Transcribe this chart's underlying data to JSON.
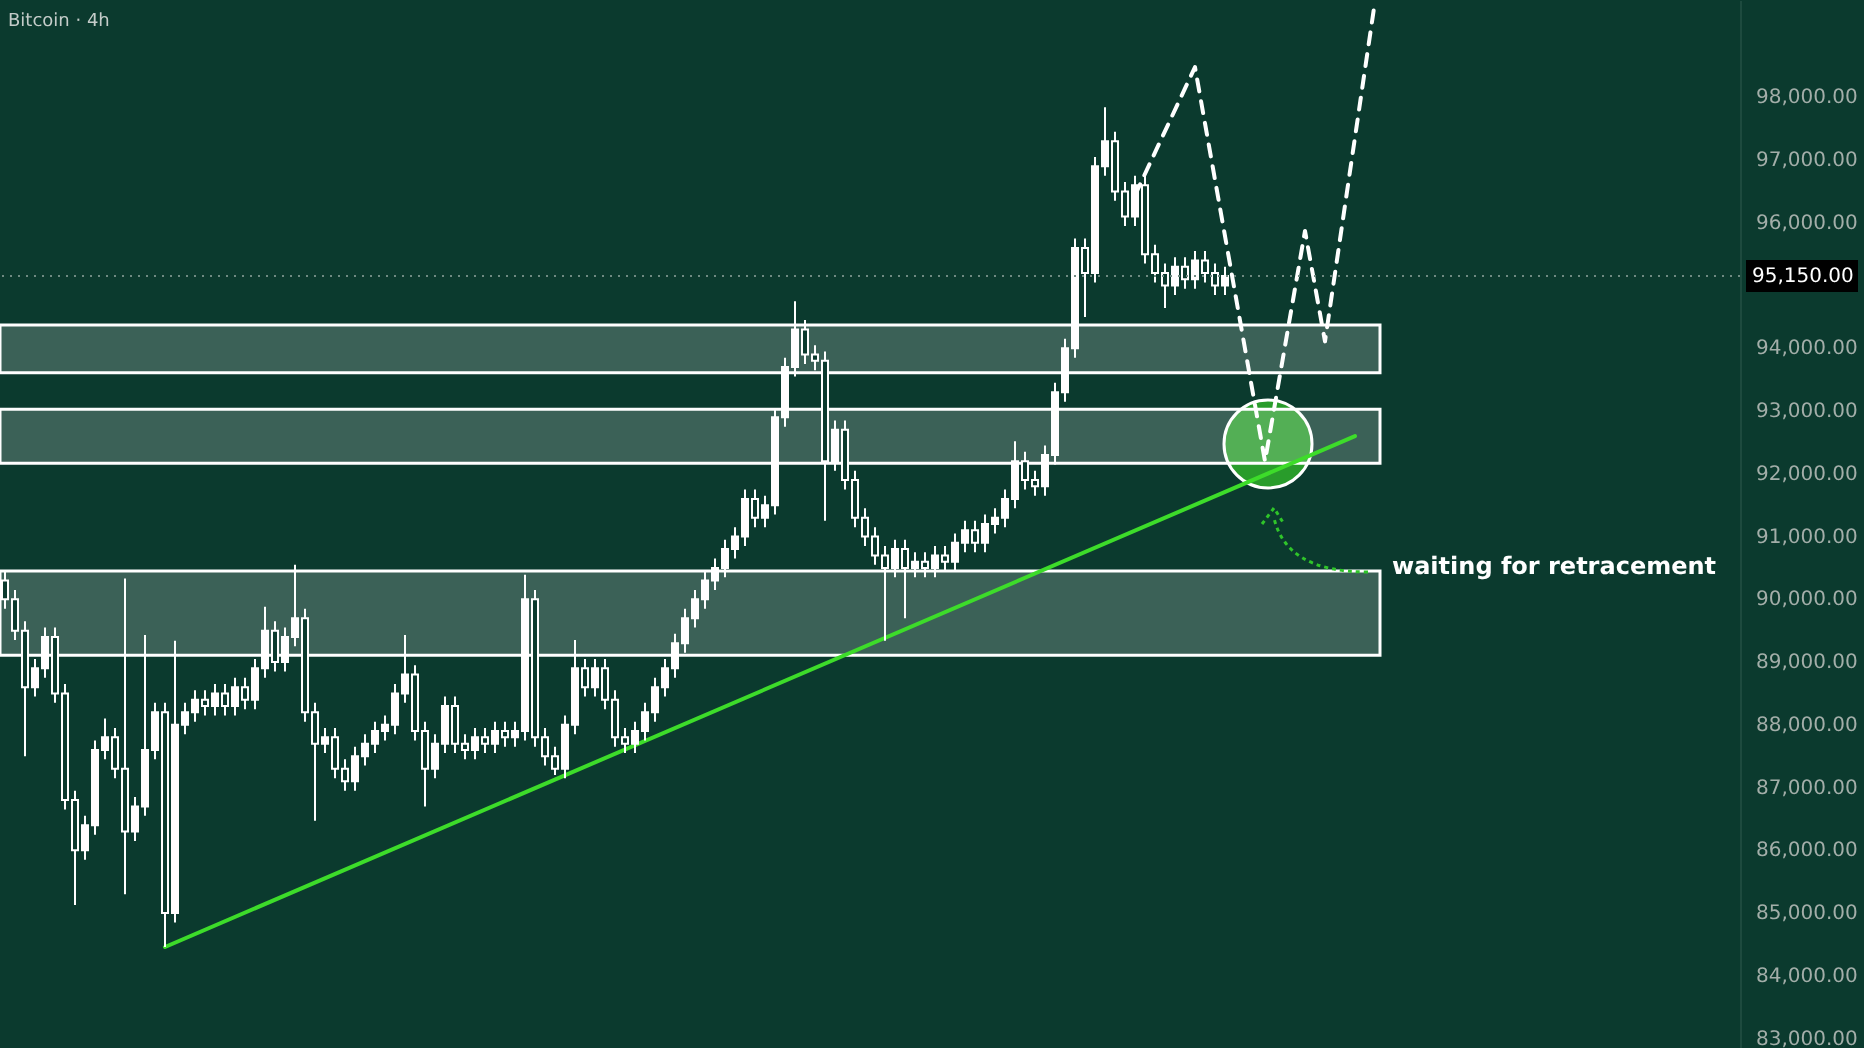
{
  "chart_data": {
    "type": "candlestick",
    "title": "Bitcoin · 4h",
    "categories": [
      null,
      null,
      null,
      null,
      null,
      null,
      null,
      null,
      null,
      null,
      null,
      null,
      null,
      null,
      null,
      null,
      null,
      null,
      null,
      null,
      null,
      null,
      null,
      null,
      null,
      null,
      null,
      null,
      null,
      null,
      null,
      null,
      null,
      null,
      null,
      null,
      null,
      null,
      null,
      null,
      null,
      null,
      null,
      null,
      null,
      null,
      null,
      null,
      null,
      null,
      null,
      null,
      null,
      null,
      null,
      null,
      null,
      null,
      null,
      null,
      null,
      null,
      null,
      null,
      null,
      null,
      null,
      null,
      null,
      null,
      null,
      null,
      null,
      null,
      null,
      null,
      null,
      null,
      null,
      null,
      null,
      null,
      null,
      null,
      null,
      null,
      null,
      null,
      null,
      null,
      null,
      null,
      null,
      null,
      null,
      null,
      null,
      null,
      null,
      null,
      null,
      null,
      null,
      null,
      null,
      null,
      null,
      null,
      null,
      null,
      null,
      null,
      null,
      null,
      null,
      null,
      null,
      null,
      null,
      null,
      null,
      null,
      null,
      null,
      null,
      null,
      null,
      null,
      null,
      null,
      null,
      null,
      null,
      null,
      null,
      null,
      null,
      null,
      null,
      null,
      null,
      null,
      null,
      null,
      null,
      null,
      null,
      null,
      null,
      null,
      null,
      null,
      null,
      null,
      null,
      null,
      null,
      null,
      null,
      null,
      null,
      null,
      null,
      null,
      null,
      null,
      null,
      null,
      null,
      null,
      null,
      null,
      null,
      null
    ],
    "series": [
      {
        "type": "candlestick",
        "color": "#ffffff",
        "ohlc": [
          [
            90300,
            90450,
            89850,
            90000
          ],
          [
            90000,
            90150,
            89350,
            89500
          ],
          [
            89500,
            89650,
            87500,
            88600
          ],
          [
            88600,
            89050,
            88450,
            88900
          ],
          [
            88900,
            89550,
            88750,
            89400
          ],
          [
            89400,
            89550,
            88350,
            88500
          ],
          [
            88500,
            88650,
            86650,
            86800
          ],
          [
            86800,
            86950,
            85130,
            86000
          ],
          [
            86000,
            86550,
            85850,
            86400
          ],
          [
            86400,
            87750,
            86250,
            87600
          ],
          [
            87600,
            88100,
            87450,
            87800
          ],
          [
            87800,
            87950,
            87150,
            87300
          ],
          [
            87300,
            90330,
            85300,
            86300
          ],
          [
            86300,
            86850,
            86150,
            86700
          ],
          [
            86700,
            89430,
            86550,
            87600
          ],
          [
            87600,
            88350,
            87450,
            88200
          ],
          [
            88200,
            88350,
            84460,
            85000
          ],
          [
            85000,
            89340,
            84850,
            88000
          ],
          [
            88000,
            88350,
            87850,
            88200
          ],
          [
            88200,
            88550,
            88050,
            88400
          ],
          [
            88400,
            88550,
            88150,
            88300
          ],
          [
            88300,
            88650,
            88150,
            88500
          ],
          [
            88500,
            88650,
            88150,
            88300
          ],
          [
            88300,
            88750,
            88150,
            88600
          ],
          [
            88600,
            88750,
            88250,
            88400
          ],
          [
            88400,
            89050,
            88250,
            88900
          ],
          [
            88900,
            89880,
            88750,
            89500
          ],
          [
            89500,
            89650,
            88850,
            89000
          ],
          [
            89000,
            89550,
            88850,
            89400
          ],
          [
            89400,
            90550,
            89250,
            89700
          ],
          [
            89700,
            89850,
            88050,
            88200
          ],
          [
            88200,
            88350,
            86470,
            87700
          ],
          [
            87700,
            87950,
            87550,
            87800
          ],
          [
            87800,
            87950,
            87150,
            87300
          ],
          [
            87300,
            87450,
            86950,
            87100
          ],
          [
            87100,
            87650,
            86950,
            87500
          ],
          [
            87500,
            87850,
            87350,
            87700
          ],
          [
            87700,
            88050,
            87550,
            87900
          ],
          [
            87900,
            88150,
            87750,
            88000
          ],
          [
            88000,
            88650,
            87850,
            88500
          ],
          [
            88500,
            89430,
            88350,
            88800
          ],
          [
            88800,
            88950,
            87750,
            87900
          ],
          [
            87900,
            88050,
            86700,
            87300
          ],
          [
            87300,
            87850,
            87150,
            87700
          ],
          [
            87700,
            88450,
            87550,
            88300
          ],
          [
            88300,
            88450,
            87550,
            87700
          ],
          [
            87700,
            87850,
            87450,
            87600
          ],
          [
            87600,
            87950,
            87450,
            87800
          ],
          [
            87800,
            87950,
            87550,
            87700
          ],
          [
            87700,
            88050,
            87550,
            87900
          ],
          [
            87900,
            88050,
            87650,
            87800
          ],
          [
            87800,
            88050,
            87650,
            87900
          ],
          [
            87900,
            90390,
            87750,
            90000
          ],
          [
            90000,
            90150,
            87650,
            87800
          ],
          [
            87800,
            87950,
            87350,
            87500
          ],
          [
            87500,
            87650,
            87200,
            87300
          ],
          [
            87300,
            88150,
            87150,
            88000
          ],
          [
            88000,
            89350,
            87850,
            88900
          ],
          [
            88900,
            89050,
            88450,
            88600
          ],
          [
            88600,
            89050,
            88450,
            88900
          ],
          [
            88900,
            89050,
            88250,
            88400
          ],
          [
            88400,
            88550,
            87650,
            87800
          ],
          [
            87800,
            87950,
            87550,
            87700
          ],
          [
            87700,
            88050,
            87550,
            87900
          ],
          [
            87900,
            88350,
            87750,
            88200
          ],
          [
            88200,
            88750,
            88050,
            88600
          ],
          [
            88600,
            89050,
            88450,
            88900
          ],
          [
            88900,
            89450,
            88750,
            89300
          ],
          [
            89300,
            89850,
            89150,
            89700
          ],
          [
            89700,
            90150,
            89550,
            90000
          ],
          [
            90000,
            90450,
            89850,
            90300
          ],
          [
            90300,
            90650,
            90150,
            90500
          ],
          [
            90500,
            90950,
            90350,
            90800
          ],
          [
            90800,
            91150,
            90650,
            91000
          ],
          [
            91000,
            91750,
            90850,
            91600
          ],
          [
            91600,
            91750,
            91150,
            91300
          ],
          [
            91300,
            91650,
            91150,
            91500
          ],
          [
            91500,
            93050,
            91350,
            92900
          ],
          [
            92900,
            93850,
            92750,
            93700
          ],
          [
            93700,
            94750,
            93550,
            94300
          ],
          [
            94300,
            94450,
            93750,
            93900
          ],
          [
            93900,
            94050,
            93650,
            93800
          ],
          [
            93800,
            93950,
            91250,
            92200
          ],
          [
            92200,
            92850,
            92050,
            92700
          ],
          [
            92700,
            92850,
            91750,
            91900
          ],
          [
            91900,
            92050,
            91150,
            91300
          ],
          [
            91300,
            91450,
            90850,
            91000
          ],
          [
            91000,
            91150,
            90550,
            90700
          ],
          [
            90700,
            90850,
            89340,
            90500
          ],
          [
            90500,
            90950,
            90350,
            90800
          ],
          [
            90800,
            90950,
            89700,
            90500
          ],
          [
            90500,
            90750,
            90350,
            90600
          ],
          [
            90600,
            90750,
            90350,
            90500
          ],
          [
            90500,
            90850,
            90350,
            90700
          ],
          [
            90700,
            90850,
            90450,
            90600
          ],
          [
            90600,
            91050,
            90450,
            90900
          ],
          [
            90900,
            91250,
            90750,
            91100
          ],
          [
            91100,
            91250,
            90750,
            90900
          ],
          [
            90900,
            91350,
            90750,
            91200
          ],
          [
            91200,
            91450,
            91050,
            91300
          ],
          [
            91300,
            91750,
            91150,
            91600
          ],
          [
            91600,
            92520,
            91450,
            92200
          ],
          [
            92200,
            92350,
            91750,
            91900
          ],
          [
            91900,
            92050,
            91650,
            91800
          ],
          [
            91800,
            92450,
            91650,
            92300
          ],
          [
            92300,
            93450,
            92150,
            93300
          ],
          [
            93300,
            94150,
            93150,
            94000
          ],
          [
            94000,
            95750,
            93850,
            95600
          ],
          [
            95600,
            95750,
            94500,
            95200
          ],
          [
            95200,
            97050,
            95050,
            96900
          ],
          [
            96900,
            97840,
            96750,
            97300
          ],
          [
            97300,
            97450,
            96350,
            96500
          ],
          [
            96500,
            96650,
            95950,
            96100
          ],
          [
            96100,
            96750,
            95950,
            96600
          ],
          [
            96600,
            96750,
            95350,
            95500
          ],
          [
            95500,
            95650,
            95050,
            95200
          ],
          [
            95200,
            95350,
            94640,
            95000
          ],
          [
            95000,
            95450,
            94850,
            95300
          ],
          [
            95300,
            95450,
            94950,
            95100
          ],
          [
            95100,
            95550,
            94950,
            95400
          ],
          [
            95400,
            95550,
            95050,
            95200
          ],
          [
            95200,
            95350,
            94850,
            95000
          ],
          [
            95000,
            95300,
            94850,
            95150
          ],
          null,
          null,
          null,
          null,
          null,
          null,
          null,
          null,
          null,
          null,
          null,
          null,
          null,
          null,
          null,
          null,
          null,
          null,
          null,
          null,
          null,
          null,
          null,
          null,
          null,
          null,
          null,
          null,
          null,
          null,
          null,
          null,
          null,
          null,
          null,
          null,
          null,
          null,
          null,
          null,
          null,
          null,
          null,
          null,
          null,
          null,
          null,
          null,
          null,
          null,
          null
        ]
      },
      {
        "type": "line",
        "color": "#3ddc2a",
        "values": [
          null,
          null,
          null,
          null,
          null,
          null,
          null,
          null,
          null,
          null,
          null,
          null,
          null,
          null,
          null,
          null,
          84460,
          null,
          null,
          null,
          null,
          null,
          null,
          null,
          null,
          null,
          null,
          null,
          null,
          null,
          null,
          null,
          null,
          null,
          null,
          null,
          null,
          null,
          null,
          null,
          null,
          null,
          null,
          null,
          null,
          null,
          null,
          null,
          null,
          null,
          null,
          null,
          null,
          null,
          null,
          null,
          null,
          null,
          null,
          null,
          null,
          null,
          null,
          null,
          null,
          null,
          null,
          null,
          null,
          null,
          null,
          null,
          null,
          null,
          null,
          null,
          null,
          null,
          null,
          null,
          null,
          null,
          null,
          null,
          null,
          null,
          null,
          null,
          null,
          null,
          null,
          null,
          null,
          null,
          null,
          null,
          null,
          null,
          null,
          null,
          null,
          null,
          null,
          null,
          null,
          null,
          null,
          null,
          null,
          null,
          null,
          null,
          null,
          null,
          null,
          null,
          null,
          null,
          null,
          null,
          null,
          null,
          null,
          null,
          null,
          null,
          null,
          null,
          null,
          null,
          null,
          null,
          null,
          null,
          null,
          92600,
          null,
          null,
          null,
          null,
          null,
          null,
          null,
          null,
          null,
          null,
          null,
          null,
          null,
          null,
          null,
          null,
          null,
          null,
          null,
          null,
          null,
          null,
          null,
          null,
          null,
          null,
          null,
          null,
          null,
          null,
          null,
          null,
          null,
          null,
          null,
          null,
          null,
          null
        ]
      },
      {
        "type": "line",
        "color": "#ffffff",
        "line_style": "dashed",
        "values": [
          null,
          null,
          null,
          null,
          null,
          null,
          null,
          null,
          null,
          null,
          null,
          null,
          null,
          null,
          null,
          null,
          null,
          null,
          null,
          null,
          null,
          null,
          null,
          null,
          null,
          null,
          null,
          null,
          null,
          null,
          null,
          null,
          null,
          null,
          null,
          null,
          null,
          null,
          null,
          null,
          null,
          null,
          null,
          null,
          null,
          null,
          null,
          null,
          null,
          null,
          null,
          null,
          null,
          null,
          null,
          null,
          null,
          null,
          null,
          null,
          null,
          null,
          null,
          null,
          null,
          null,
          null,
          null,
          null,
          null,
          null,
          null,
          null,
          null,
          null,
          null,
          null,
          null,
          null,
          null,
          null,
          null,
          null,
          null,
          null,
          null,
          null,
          null,
          null,
          null,
          null,
          null,
          null,
          null,
          null,
          null,
          null,
          null,
          null,
          null,
          null,
          null,
          null,
          null,
          null,
          null,
          null,
          null,
          null,
          null,
          null,
          null,
          null,
          96440,
          null,
          null,
          null,
          null,
          null,
          98480,
          null,
          null,
          null,
          null,
          null,
          null,
          92200,
          null,
          null,
          null,
          95870,
          null,
          94110,
          null,
          null,
          null,
          null,
          99530,
          null,
          null,
          null,
          null,
          null,
          null,
          null,
          null,
          null,
          null,
          null,
          null,
          null,
          null,
          null,
          null,
          null,
          null,
          null,
          null,
          null,
          null,
          null,
          null,
          null,
          null,
          null,
          null,
          null,
          null,
          null,
          null,
          null,
          null,
          null,
          null
        ]
      }
    ],
    "ylim": [
      82850,
      99550
    ],
    "yticks": [
      {
        "value": 83000,
        "label": "83,000.00"
      },
      {
        "value": 84000,
        "label": "84,000.00"
      },
      {
        "value": 85000,
        "label": "85,000.00"
      },
      {
        "value": 86000,
        "label": "86,000.00"
      },
      {
        "value": 87000,
        "label": "87,000.00"
      },
      {
        "value": 88000,
        "label": "88,000.00"
      },
      {
        "value": 89000,
        "label": "89,000.00"
      },
      {
        "value": 90000,
        "label": "90,000.00"
      },
      {
        "value": 91000,
        "label": "91,000.00"
      },
      {
        "value": 92000,
        "label": "92,000.00"
      },
      {
        "value": 93000,
        "label": "93,000.00"
      },
      {
        "value": 94000,
        "label": "94,000.00"
      },
      {
        "value": 96000,
        "label": "96,000.00"
      },
      {
        "value": 97000,
        "label": "97,000.00"
      },
      {
        "value": 98000,
        "label": "98,000.00"
      }
    ],
    "tick_labels": "y",
    "ref_lines": [
      {
        "axis": "y",
        "value": 95150,
        "label": "95,150.00",
        "line_style": "dotted",
        "color": "#6f8a82"
      }
    ],
    "bands": [
      {
        "axis": "y",
        "from": 93610,
        "to": 94370,
        "color": "#ffffff"
      },
      {
        "axis": "y",
        "from": 92170,
        "to": 93030,
        "color": "#ffffff"
      },
      {
        "axis": "y",
        "from": 89110,
        "to": 90450,
        "color": "#ffffff"
      }
    ],
    "annotations": [
      "waiting for retracement"
    ]
  }
}
